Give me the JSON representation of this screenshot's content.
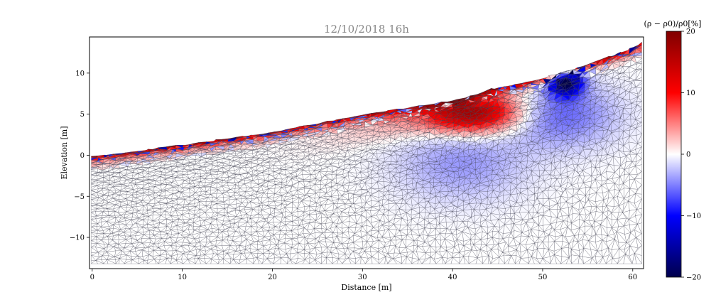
{
  "chart_data": {
    "type": "heatmap",
    "title": "12/10/2018 16h",
    "xlabel": "Distance [m]",
    "ylabel": "Elevation [m]",
    "xlim": [
      -0.3,
      61.2
    ],
    "ylim": [
      -13.8,
      14.4
    ],
    "x_ticks": [
      0,
      10,
      20,
      30,
      40,
      50,
      60
    ],
    "y_ticks": [
      -10,
      -5,
      0,
      5,
      10
    ],
    "x_tick_labels": [
      "0",
      "10",
      "20",
      "30",
      "40",
      "50",
      "60"
    ],
    "y_tick_labels": [
      "−10",
      "−5",
      "0",
      "5",
      "10"
    ],
    "grid": false,
    "mesh": "triangular",
    "surface_profile": [
      [
        0,
        -0.2
      ],
      [
        10,
        1.2
      ],
      [
        20,
        2.8
      ],
      [
        30,
        4.9
      ],
      [
        40,
        6.6
      ],
      [
        45,
        8.2
      ],
      [
        50,
        9.3
      ],
      [
        55,
        11.0
      ],
      [
        60,
        13.0
      ],
      [
        61,
        13.6
      ]
    ],
    "colorbar": {
      "label": "(ρ − ρ0)/ρ0[%]",
      "range": [
        -20,
        20
      ],
      "ticks": [
        20,
        10,
        0,
        -10,
        -20
      ],
      "tick_labels": [
        "20",
        "10",
        "0",
        "−10",
        "−20"
      ],
      "colormap": "seismic",
      "colors": {
        "min": "#00004c",
        "low": "#0000ff",
        "mid": "#ffffff",
        "high": "#ff0000",
        "max": "#800000"
      }
    },
    "features": [
      {
        "x": [
          0,
          61
        ],
        "depth": 1.0,
        "value": 20,
        "description": "near-surface band of strong positive change along the surface"
      },
      {
        "x": [
          37,
          48
        ],
        "y": [
          3.5,
          6.5
        ],
        "value": 15,
        "description": "strong positive zone below surface"
      },
      {
        "x": [
          50,
          55
        ],
        "y": [
          7.5,
          10.5
        ],
        "value": -20,
        "description": "strong negative zone below surface"
      },
      {
        "x": [
          35,
          48
        ],
        "y": [
          -5,
          3
        ],
        "value": -4,
        "description": "weak negative diffuse zone at depth"
      }
    ]
  }
}
